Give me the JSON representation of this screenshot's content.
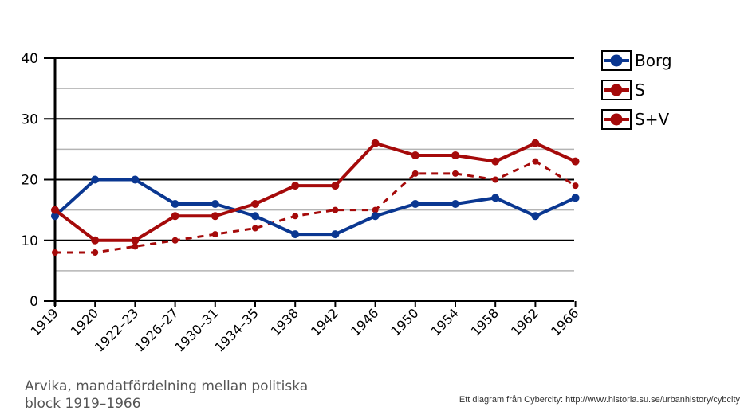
{
  "caption": {
    "line1": "Arvika, mandatfördelning  mellan politiska",
    "line2": "block 1919–1966"
  },
  "credit": "Ett diagram från Cybercity: http://www.historia.su.se/urbanhistory/cybcity",
  "chart_data": {
    "type": "line",
    "title": "",
    "xlabel": "",
    "ylabel": "",
    "ylim": [
      0,
      40
    ],
    "yticks": [
      0,
      10,
      20,
      30,
      40
    ],
    "grid": true,
    "legend_position": "right",
    "categories": [
      "1919",
      "1920",
      "1922–23",
      "1926–27",
      "1930–31",
      "1934–35",
      "1938",
      "1942",
      "1946",
      "1950",
      "1954",
      "1958",
      "1962",
      "1966"
    ],
    "series": [
      {
        "name": "Borg",
        "color": "#0a3791",
        "style": "solid",
        "values": [
          14,
          20,
          20,
          16,
          16,
          14,
          11,
          11,
          14,
          16,
          16,
          17,
          14,
          17
        ]
      },
      {
        "name": "S",
        "color": "#a50a0a",
        "style": "dashed",
        "values": [
          8,
          8,
          9,
          10,
          11,
          12,
          14,
          15,
          15,
          21,
          21,
          20,
          23,
          19
        ]
      },
      {
        "name": "S+V",
        "color": "#a50a0a",
        "style": "solid",
        "values": [
          15,
          10,
          10,
          14,
          14,
          16,
          19,
          19,
          26,
          24,
          24,
          23,
          26,
          23
        ]
      }
    ]
  }
}
